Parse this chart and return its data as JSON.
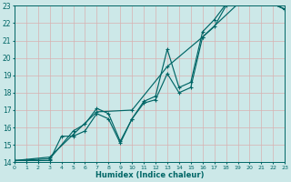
{
  "xlabel": "Humidex (Indice chaleur)",
  "xlim": [
    0,
    23
  ],
  "ylim": [
    14,
    23
  ],
  "xticks": [
    0,
    1,
    2,
    3,
    4,
    5,
    6,
    7,
    8,
    9,
    10,
    11,
    12,
    13,
    14,
    15,
    16,
    17,
    18,
    19,
    20,
    21,
    22,
    23
  ],
  "yticks": [
    14,
    15,
    16,
    17,
    18,
    19,
    20,
    21,
    22,
    23
  ],
  "bg_color": "#cce8e8",
  "grid_color": "#b8d8d8",
  "line_color": "#006666",
  "line1_x": [
    0,
    1,
    2,
    3,
    4,
    5,
    6,
    7,
    8,
    9,
    10,
    11,
    12,
    13,
    14,
    15,
    16,
    17,
    18,
    19,
    20,
    21,
    22,
    23
  ],
  "line1_y": [
    14.1,
    14.1,
    14.1,
    14.1,
    15.5,
    15.5,
    15.8,
    16.8,
    16.5,
    15.1,
    16.5,
    17.4,
    17.6,
    19.1,
    18.0,
    18.3,
    21.2,
    21.8,
    23.0,
    23.1,
    23.1,
    23.2,
    23.1,
    22.8
  ],
  "line2_x": [
    0,
    3,
    5,
    6,
    7,
    8,
    9,
    10,
    11,
    12,
    13,
    14,
    15,
    16,
    17,
    18,
    19,
    20,
    21,
    22,
    23
  ],
  "line2_y": [
    14.1,
    14.2,
    15.8,
    16.2,
    17.1,
    16.8,
    15.2,
    16.5,
    17.5,
    17.8,
    20.5,
    18.3,
    18.6,
    21.5,
    22.2,
    23.1,
    23.1,
    23.1,
    23.2,
    23.1,
    22.8
  ],
  "line3_x": [
    0,
    3,
    5,
    7,
    10,
    13,
    16,
    19,
    21,
    22,
    23
  ],
  "line3_y": [
    14.1,
    14.3,
    15.6,
    16.9,
    17.0,
    19.5,
    21.2,
    23.1,
    23.2,
    23.1,
    22.8
  ]
}
